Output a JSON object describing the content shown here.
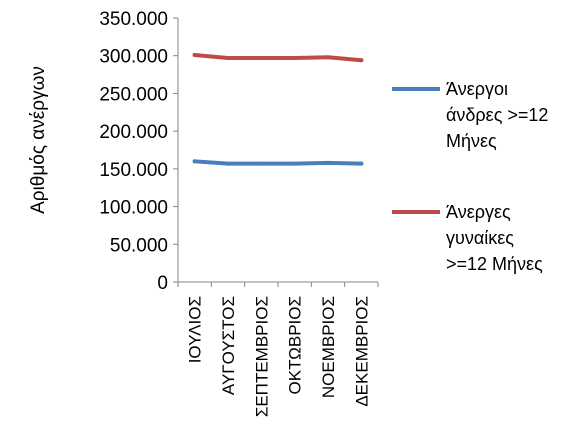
{
  "chart_data": {
    "type": "line",
    "title": "",
    "xlabel": "",
    "ylabel": "Αριθμός ανέργων",
    "categories": [
      "ΙΟΥΛΙΟΣ",
      "ΑΥΓΟΥΣΤΟΣ",
      "ΣΕΠΤΕΜΒΡΙΟΣ",
      "ΟΚΤΩΒΡΙΟΣ",
      "ΝΟΕΜΒΡΙΟΣ",
      "ΔΕΚΕΜΒΡΙΟΣ"
    ],
    "ylim": [
      0,
      350000
    ],
    "yticks": [
      0,
      50000,
      100000,
      150000,
      200000,
      250000,
      300000,
      350000
    ],
    "ytick_labels": [
      "0",
      "50.000",
      "100.000",
      "150.000",
      "200.000",
      "250.000",
      "300.000",
      "350.000"
    ],
    "grid": false,
    "legend_position": "right",
    "series": [
      {
        "name": "Άνεργοι άνδρες >=12 Μήνες",
        "legend_lines": [
          "Άνεργοι",
          "άνδρες >=12",
          "Μήνες"
        ],
        "color": "#4a7ebb",
        "values": [
          160000,
          157000,
          157000,
          157000,
          158000,
          157000
        ]
      },
      {
        "name": "Άνεργες γυναίκες >=12 Μήνες",
        "legend_lines": [
          "Άνεργες",
          "γυναίκες",
          ">=12 Μήνες"
        ],
        "color": "#be4b48",
        "values": [
          301000,
          297000,
          297000,
          297000,
          298000,
          294000
        ]
      }
    ]
  }
}
